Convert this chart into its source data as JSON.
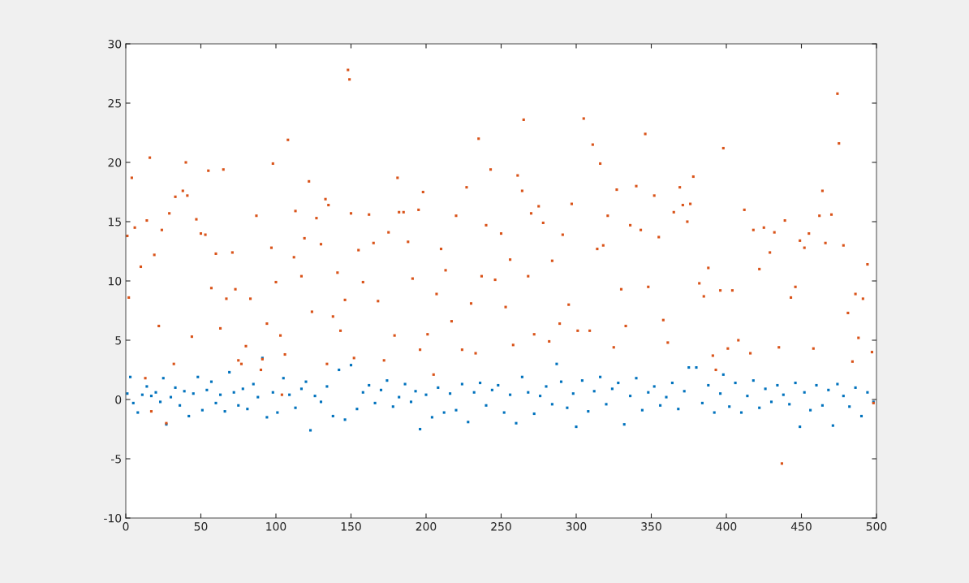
{
  "chart_data": {
    "type": "scatter",
    "xlim": [
      0,
      500
    ],
    "ylim": [
      -10,
      30
    ],
    "xticks": [
      0,
      50,
      100,
      150,
      200,
      250,
      300,
      350,
      400,
      450,
      500
    ],
    "yticks": [
      -10,
      -5,
      0,
      5,
      10,
      15,
      20,
      25,
      30
    ],
    "grid": false,
    "legend": false,
    "marker": "square",
    "series": [
      {
        "color": "#0072bd",
        "x": [
          1,
          3,
          5,
          8,
          11,
          14,
          17,
          20,
          23,
          25,
          27,
          30,
          33,
          36,
          39,
          42,
          45,
          48,
          51,
          54,
          57,
          60,
          63,
          66,
          69,
          72,
          75,
          78,
          81,
          85,
          88,
          91,
          94,
          98,
          101,
          105,
          109,
          113,
          117,
          120,
          123,
          126,
          130,
          134,
          138,
          142,
          146,
          150,
          154,
          158,
          162,
          166,
          170,
          174,
          178,
          182,
          186,
          190,
          193,
          196,
          200,
          204,
          208,
          212,
          216,
          220,
          224,
          228,
          232,
          236,
          240,
          244,
          248,
          252,
          256,
          260,
          264,
          268,
          272,
          276,
          280,
          284,
          287,
          290,
          294,
          298,
          300,
          304,
          308,
          312,
          316,
          320,
          324,
          328,
          332,
          336,
          340,
          344,
          348,
          352,
          356,
          360,
          364,
          368,
          372,
          375,
          380,
          384,
          388,
          392,
          396,
          398,
          402,
          406,
          410,
          414,
          418,
          422,
          426,
          430,
          434,
          438,
          442,
          446,
          449,
          452,
          456,
          460,
          464,
          468,
          471,
          474,
          478,
          482,
          486,
          490,
          494,
          498
        ],
        "values": [
          0.5,
          1.9,
          -0.3,
          -1.1,
          0.4,
          1.1,
          0.3,
          0.6,
          -0.2,
          1.8,
          -2.1,
          0.2,
          1,
          -0.5,
          0.7,
          -1.4,
          0.5,
          1.9,
          -0.9,
          0.8,
          1.5,
          -0.3,
          0.4,
          -1,
          2.3,
          0.6,
          -0.5,
          0.9,
          -0.8,
          1.3,
          0.2,
          3.5,
          -1.5,
          0.6,
          -1.1,
          1.8,
          0.4,
          -0.7,
          0.9,
          1.5,
          -2.6,
          0.3,
          -0.2,
          1.1,
          -1.4,
          2.5,
          -1.7,
          2.9,
          -0.8,
          0.6,
          1.2,
          -0.3,
          0.8,
          1.6,
          -0.6,
          0.2,
          1.3,
          -0.2,
          0.7,
          -2.5,
          0.4,
          -1.5,
          1,
          -1.1,
          0.5,
          -0.9,
          1.3,
          -1.9,
          0.6,
          1.4,
          -0.5,
          0.8,
          1.2,
          -1.1,
          0.4,
          -2,
          1.9,
          0.6,
          -1.2,
          0.3,
          1.1,
          -0.4,
          3,
          1.5,
          -0.7,
          0.5,
          -2.3,
          1.6,
          -1,
          0.7,
          1.9,
          -0.4,
          0.9,
          1.4,
          -2.1,
          0.3,
          1.8,
          -0.9,
          0.6,
          1.1,
          -0.5,
          0.2,
          1.4,
          -0.8,
          0.7,
          2.7,
          2.7,
          -0.3,
          1.2,
          -1.1,
          0.5,
          2.1,
          -0.6,
          1.4,
          -1.1,
          0.3,
          1.6,
          -0.7,
          0.9,
          -0.2,
          1.2,
          0.4,
          -0.4,
          1.4,
          -2.3,
          0.6,
          -0.9,
          1.2,
          -0.5,
          0.8,
          -2.2,
          1.3,
          0.3,
          -0.6,
          1,
          -1.4,
          0.6,
          -0.2
        ]
      },
      {
        "color": "#d95319",
        "x": [
          1,
          2,
          4,
          6,
          10,
          13,
          14,
          16,
          17,
          19,
          22,
          24,
          27,
          29,
          32,
          33,
          38,
          40,
          41,
          44,
          47,
          50,
          53,
          55,
          57,
          60,
          63,
          65,
          67,
          71,
          73,
          75,
          77,
          80,
          83,
          87,
          90,
          91,
          94,
          97,
          98,
          100,
          103,
          104,
          106,
          108,
          112,
          113,
          117,
          119,
          122,
          124,
          127,
          130,
          133,
          134,
          135,
          138,
          141,
          143,
          146,
          148,
          149,
          150,
          152,
          155,
          158,
          162,
          165,
          168,
          172,
          175,
          179,
          181,
          182,
          185,
          188,
          191,
          195,
          196,
          198,
          201,
          205,
          207,
          210,
          213,
          217,
          220,
          224,
          227,
          230,
          233,
          235,
          237,
          240,
          243,
          246,
          250,
          253,
          256,
          258,
          261,
          264,
          265,
          268,
          270,
          272,
          275,
          278,
          282,
          284,
          289,
          291,
          295,
          297,
          301,
          305,
          309,
          311,
          314,
          316,
          318,
          321,
          325,
          327,
          330,
          333,
          336,
          340,
          343,
          346,
          348,
          352,
          355,
          358,
          361,
          365,
          369,
          371,
          374,
          376,
          378,
          382,
          385,
          388,
          391,
          393,
          396,
          398,
          401,
          404,
          408,
          412,
          416,
          418,
          422,
          425,
          429,
          432,
          435,
          437,
          439,
          443,
          446,
          449,
          452,
          455,
          458,
          462,
          464,
          466,
          470,
          474,
          475,
          478,
          481,
          484,
          486,
          488,
          491,
          494,
          497,
          498
        ],
        "values": [
          13.8,
          8.6,
          18.7,
          14.5,
          11.2,
          1.8,
          15.1,
          20.4,
          -1,
          12.2,
          6.2,
          14.3,
          -2,
          15.7,
          3,
          17.1,
          17.6,
          20,
          17.2,
          5.3,
          15.2,
          14,
          13.9,
          19.3,
          9.4,
          12.3,
          6,
          19.4,
          8.5,
          12.4,
          9.3,
          3.3,
          3,
          4.5,
          8.5,
          15.5,
          2.5,
          3.4,
          6.4,
          12.8,
          19.9,
          9.9,
          5.4,
          0.4,
          3.8,
          21.9,
          12,
          15.9,
          10.4,
          13.6,
          18.4,
          7.4,
          15.3,
          13.1,
          16.9,
          3,
          16.4,
          7,
          10.7,
          5.8,
          8.4,
          27.8,
          27,
          15.7,
          3.5,
          12.6,
          9.9,
          15.6,
          13.2,
          8.3,
          3.3,
          14.1,
          5.4,
          18.7,
          15.8,
          15.8,
          13.3,
          10.2,
          16,
          4.2,
          17.5,
          5.5,
          2.1,
          8.9,
          12.7,
          10.9,
          6.6,
          15.5,
          4.2,
          17.9,
          8.1,
          3.9,
          22,
          10.4,
          14.7,
          19.4,
          10.1,
          14,
          7.8,
          11.8,
          4.6,
          18.9,
          17.6,
          23.6,
          10.4,
          15.7,
          5.5,
          16.3,
          14.9,
          4.9,
          11.7,
          6.4,
          13.9,
          8,
          16.5,
          5.8,
          23.7,
          5.8,
          21.5,
          12.7,
          19.9,
          13,
          15.5,
          4.4,
          17.7,
          9.3,
          6.2,
          14.7,
          18,
          14.3,
          22.4,
          9.5,
          17.2,
          13.7,
          6.7,
          4.8,
          15.8,
          17.9,
          16.4,
          15,
          16.5,
          18.8,
          9.8,
          8.7,
          11.1,
          3.7,
          2.5,
          9.2,
          21.2,
          4.3,
          9.2,
          5,
          16,
          3.9,
          14.3,
          11,
          14.5,
          12.4,
          14.1,
          4.4,
          -5.4,
          15.1,
          8.6,
          9.5,
          13.4,
          12.8,
          14,
          4.3,
          15.5,
          17.6,
          13.2,
          15.6,
          25.8,
          21.6,
          13,
          7.3,
          3.2,
          8.9,
          5.2,
          8.5,
          11.4,
          4,
          -0.3
        ]
      }
    ]
  }
}
